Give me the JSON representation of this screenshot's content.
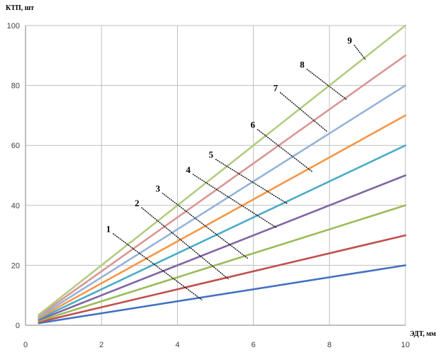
{
  "chart_data": {
    "type": "line",
    "xlabel": "ЭДТ, мм",
    "ylabel": "КТП, шт",
    "xlim": [
      0,
      10
    ],
    "ylim": [
      0,
      100
    ],
    "xticks": [
      "0",
      "2",
      "4",
      "6",
      "8",
      "10"
    ],
    "yticks": [
      "0",
      "20",
      "40",
      "60",
      "80",
      "100"
    ],
    "grid": true,
    "legend": "none",
    "series": [
      {
        "name": "1",
        "color": "#4472C4",
        "x": [
          0.35,
          10
        ],
        "y": [
          0.7,
          20
        ],
        "callout_x": [
          2.3,
          4.65
        ],
        "callout_y": [
          30.6,
          8.4
        ]
      },
      {
        "name": "2",
        "color": "#C0504D",
        "x": [
          0.35,
          10
        ],
        "y": [
          1.05,
          30
        ],
        "callout_x": [
          3.05,
          5.35
        ],
        "callout_y": [
          39.3,
          15.3
        ]
      },
      {
        "name": "3",
        "color": "#9BBB59",
        "x": [
          0.35,
          10
        ],
        "y": [
          1.4,
          40
        ],
        "callout_x": [
          3.6,
          5.85
        ],
        "callout_y": [
          44.1,
          22.3
        ]
      },
      {
        "name": "4",
        "color": "#8064A2",
        "x": [
          0.35,
          10
        ],
        "y": [
          1.75,
          50
        ],
        "callout_x": [
          4.4,
          6.6
        ],
        "callout_y": [
          50.4,
          32.6
        ]
      },
      {
        "name": "5",
        "color": "#4BACC6",
        "x": [
          0.35,
          10
        ],
        "y": [
          2.1,
          60
        ],
        "callout_x": [
          5,
          6.9
        ],
        "callout_y": [
          55.4,
          40.5
        ]
      },
      {
        "name": "6",
        "color": "#F79646",
        "x": [
          0.35,
          10
        ],
        "y": [
          2.45,
          70
        ],
        "callout_x": [
          6.1,
          7.55
        ],
        "callout_y": [
          65.4,
          51.2
        ]
      },
      {
        "name": "7",
        "color": "#95B3D7",
        "x": [
          0.35,
          10
        ],
        "y": [
          2.8,
          80
        ],
        "callout_x": [
          6.7,
          7.95
        ],
        "callout_y": [
          77.7,
          64.5
        ]
      },
      {
        "name": "8",
        "color": "#D99694",
        "x": [
          0.35,
          10
        ],
        "y": [
          3.15,
          90
        ],
        "callout_x": [
          7.4,
          8.45
        ],
        "callout_y": [
          85.5,
          75.3
        ]
      },
      {
        "name": "9",
        "color": "#B3CC82",
        "x": [
          0.35,
          10
        ],
        "y": [
          3.5,
          100
        ],
        "callout_x": [
          8.65,
          8.95
        ],
        "callout_y": [
          93.5,
          88.6
        ]
      }
    ]
  }
}
